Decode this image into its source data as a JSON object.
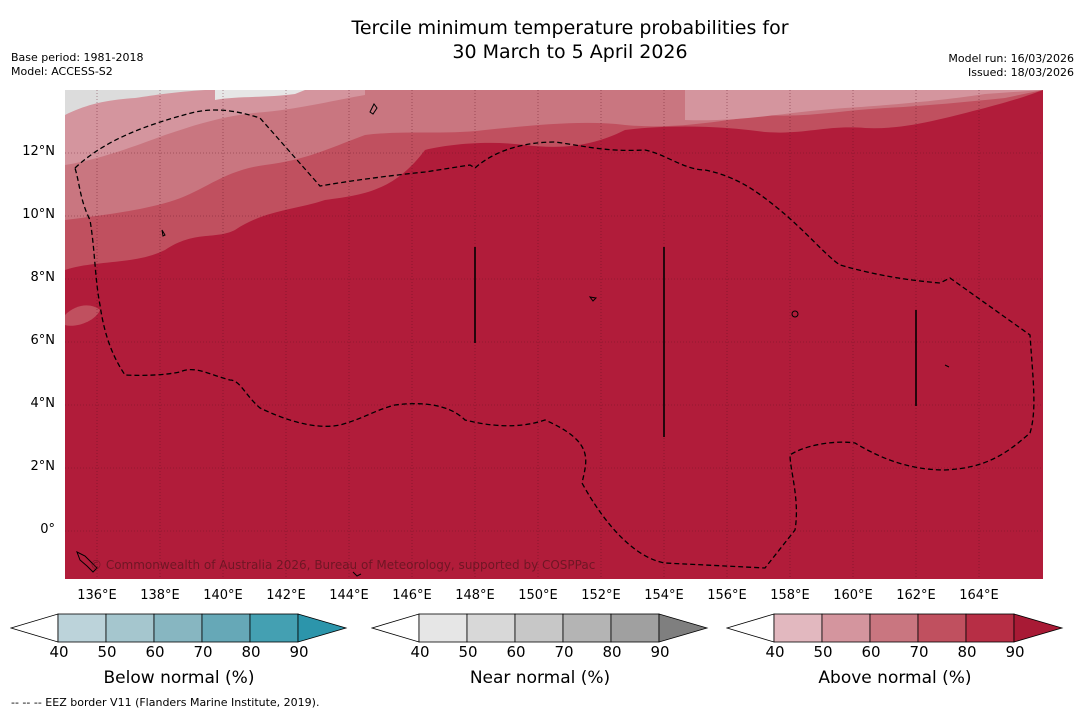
{
  "header": {
    "title_line1": "Tercile minimum temperature probabilities for",
    "title_line2": "30 March to 5 April 2026",
    "base_period": "Base period: 1981-2018",
    "model": "Model: ACCESS-S2",
    "model_run": "Model run: 16/03/2026",
    "issued": "Issued: 18/03/2026"
  },
  "map": {
    "latitude_labels": [
      "12°N",
      "10°N",
      "8°N",
      "6°N",
      "4°N",
      "2°N",
      "0°"
    ],
    "longitude_labels": [
      "136°E",
      "138°E",
      "140°E",
      "142°E",
      "144°E",
      "146°E",
      "148°E",
      "150°E",
      "152°E",
      "154°E",
      "156°E",
      "158°E",
      "160°E",
      "162°E",
      "164°E"
    ],
    "copyright": "© Commonwealth of Australia 2026, Bureau of Meteorology, supported by COSPPac",
    "base_color": "#b11c3a"
  },
  "colorbars": [
    {
      "label": "Below normal (%)",
      "ticks": [
        "40",
        "50",
        "60",
        "70",
        "80",
        "90"
      ],
      "colors": [
        "#ffffff",
        "#bcd3da",
        "#a5c6ce",
        "#87b6c1",
        "#66a8b7",
        "#44a0b2",
        "#2c95ab"
      ]
    },
    {
      "label": "Near normal (%)",
      "ticks": [
        "40",
        "50",
        "60",
        "70",
        "80",
        "90"
      ],
      "colors": [
        "#ffffff",
        "#e6e6e6",
        "#d8d8d8",
        "#c7c7c7",
        "#b4b4b4",
        "#a0a0a0",
        "#7f7f7f"
      ]
    },
    {
      "label": "Above normal (%)",
      "ticks": [
        "40",
        "50",
        "60",
        "70",
        "80",
        "90"
      ],
      "colors": [
        "#ffffff",
        "#e2b8bf",
        "#d4959e",
        "#c97680",
        "#c0505f",
        "#b72e45",
        "#a81a35"
      ]
    }
  ],
  "footnote": "--  --  -- EEZ border V11 (Flanders Marine Institute, 2019)."
}
